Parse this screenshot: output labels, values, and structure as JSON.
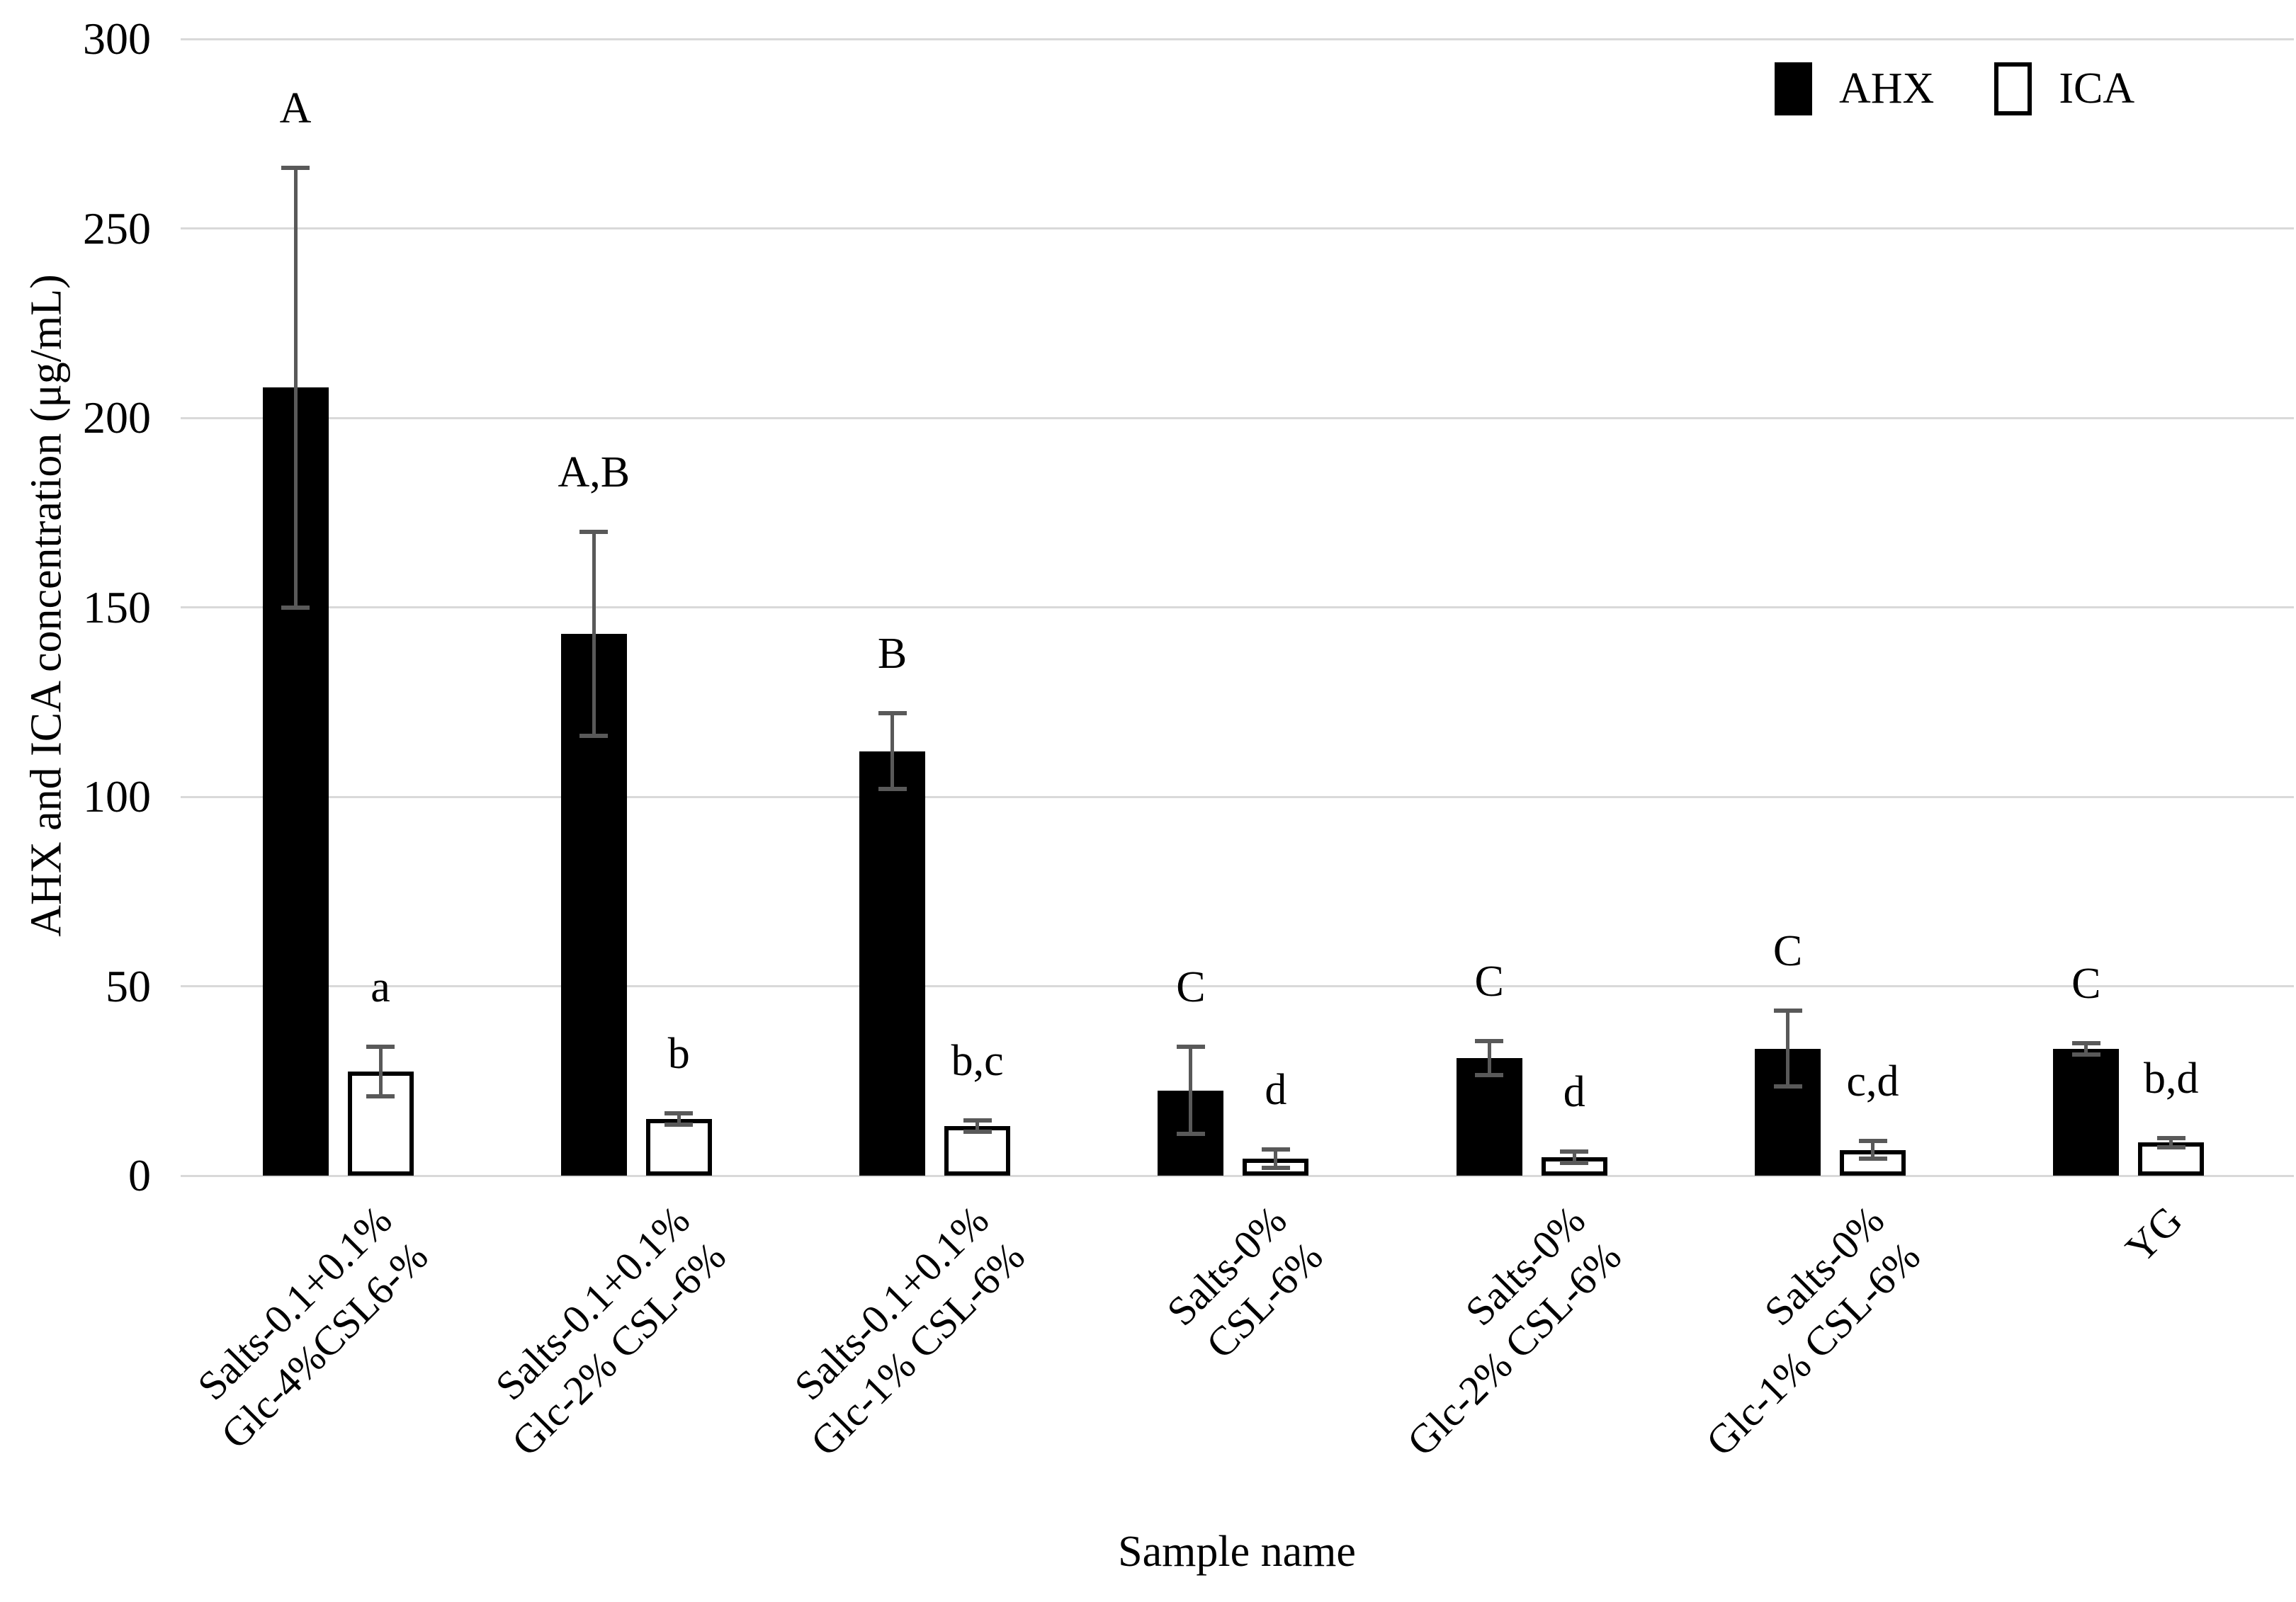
{
  "figure_title": "",
  "legend": {
    "position": "top-right",
    "items": [
      {
        "label": "AHX",
        "fill": "#000000",
        "border": "#000000"
      },
      {
        "label": "ICA",
        "fill": "#ffffff",
        "border": "#000000"
      }
    ]
  },
  "colors": {
    "gridline": "#d9d9d9",
    "error_bar": "#595959",
    "text": "#000000",
    "background": "#ffffff"
  },
  "chart_data": {
    "type": "bar",
    "title": "",
    "xlabel": "Sample name",
    "ylabel": "AHX and ICA concentration (μg/mL)",
    "ylim": [
      0,
      300
    ],
    "ytick_step": 50,
    "yticks": [
      0,
      50,
      100,
      150,
      200,
      250,
      300
    ],
    "grid": true,
    "legend_position": "top-right",
    "categories": [
      [
        "Salts-0.1+0.1%",
        "Glc-4%CSL6-%"
      ],
      [
        "Salts-0.1+0.1%",
        "Glc-2% CSL-6%"
      ],
      [
        "Salts-0.1+0.1%",
        "Glc-1% CSL-6%"
      ],
      [
        "Salts-0%",
        "CSL-6%"
      ],
      [
        "Salts-0%",
        "Glc-2% CSL-6%"
      ],
      [
        "Salts-0%",
        "Glc-1% CSL-6%"
      ],
      [
        "YG"
      ]
    ],
    "series": [
      {
        "name": "AHX",
        "fill": "#000000",
        "values": [
          208,
          143,
          112,
          22.5,
          31,
          33.5,
          33.5
        ],
        "errors": [
          58,
          27,
          10,
          11.5,
          4.5,
          10,
          1.5
        ],
        "letters": [
          "A",
          "A,B",
          "B",
          "C",
          "C",
          "C",
          "C"
        ]
      },
      {
        "name": "ICA",
        "fill": "#ffffff",
        "values": [
          27.5,
          15,
          13,
          4.5,
          4.8,
          6.8,
          8.7
        ],
        "errors": [
          6.5,
          1.5,
          1.5,
          2.5,
          1.5,
          2.3,
          1.2
        ],
        "letters": [
          "a",
          "b",
          "b,c",
          "d",
          "d",
          "c,d",
          "b,d"
        ]
      }
    ]
  }
}
